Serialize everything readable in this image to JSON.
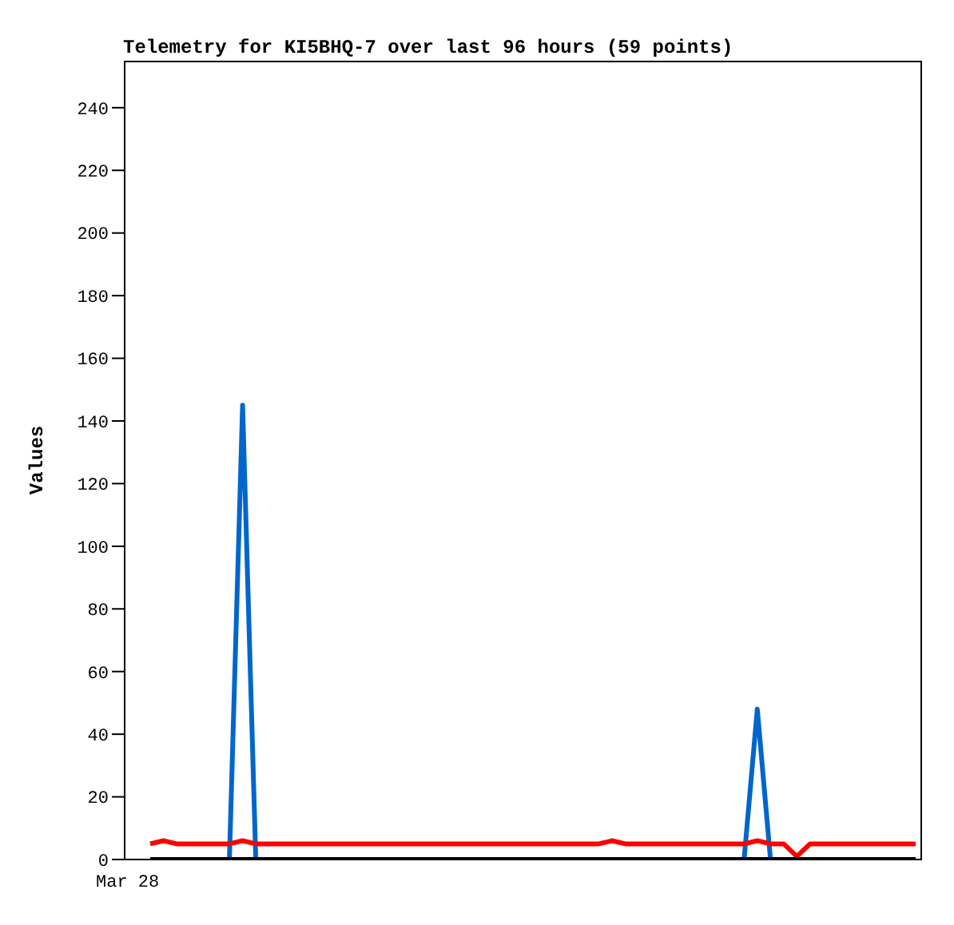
{
  "chart_data": {
    "type": "line",
    "title": "Telemetry for KI5BHQ-7 over last 96 hours (59 points)",
    "ylabel": "Values",
    "annotations": [
      "Mar 28"
    ],
    "categories": [
      null,
      null,
      null,
      null,
      null,
      null,
      null,
      null,
      null,
      null,
      null,
      null,
      null,
      null,
      null,
      null,
      null,
      null,
      null,
      null,
      null,
      null,
      null,
      null,
      null,
      null,
      null,
      null,
      null,
      null,
      null,
      null,
      null,
      null,
      null,
      null,
      null,
      null,
      null,
      null,
      null,
      null,
      null,
      null,
      null,
      null,
      null,
      null,
      null,
      null,
      null,
      null,
      null,
      null,
      null,
      null,
      null,
      null,
      null
    ],
    "ylim": [
      0,
      255
    ],
    "yticks": [
      0,
      20,
      40,
      60,
      80,
      100,
      120,
      140,
      160,
      180,
      200,
      220,
      240
    ],
    "series": [
      {
        "color": "#0066cc",
        "values": [
          null,
          null,
          null,
          null,
          null,
          null,
          0,
          145,
          0,
          null,
          null,
          null,
          null,
          null,
          null,
          null,
          null,
          null,
          null,
          null,
          null,
          null,
          null,
          null,
          null,
          null,
          null,
          null,
          null,
          null,
          null,
          null,
          null,
          null,
          null,
          null,
          null,
          null,
          null,
          null,
          null,
          null,
          null,
          null,
          null,
          0,
          48,
          0,
          null,
          null,
          null,
          null,
          null,
          null,
          null,
          null,
          null,
          null,
          null
        ]
      },
      {
        "color": "#ff0000",
        "values": [
          5,
          6,
          5,
          5,
          5,
          5,
          5,
          6,
          5,
          5,
          5,
          5,
          5,
          5,
          5,
          5,
          5,
          5,
          5,
          5,
          5,
          5,
          5,
          5,
          5,
          5,
          5,
          5,
          5,
          5,
          5,
          5,
          5,
          5,
          5,
          6,
          5,
          5,
          5,
          5,
          5,
          5,
          5,
          5,
          5,
          5,
          6,
          5,
          5,
          1,
          5,
          5,
          5,
          5,
          5,
          5,
          5,
          5,
          5
        ]
      },
      {
        "color": "#000000",
        "values": [
          0,
          0,
          0,
          0,
          0,
          0,
          0,
          0,
          0,
          0,
          0,
          0,
          0,
          0,
          0,
          0,
          0,
          0,
          0,
          0,
          0,
          0,
          0,
          0,
          0,
          0,
          0,
          0,
          0,
          0,
          0,
          0,
          0,
          0,
          0,
          0,
          0,
          0,
          0,
          0,
          0,
          0,
          0,
          0,
          0,
          0,
          0,
          0,
          0,
          0,
          0,
          0,
          0,
          0,
          0,
          0,
          0,
          0,
          0
        ]
      }
    ]
  }
}
